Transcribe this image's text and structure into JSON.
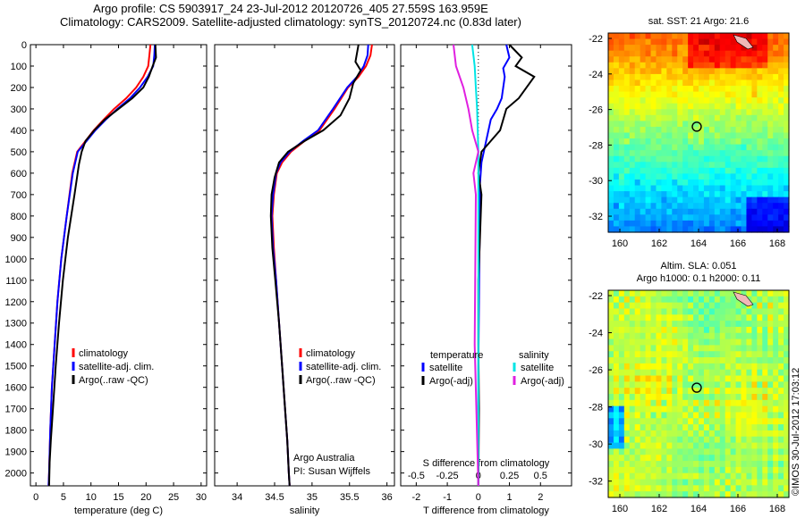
{
  "header": {
    "line1": "Argo profile: CS 5903917_24 23-Jul-2012 20120726_405 27.559S 163.959E",
    "line2": "Climatology: CARS2009. Satellite-adjusted climatology: synTS_20120724.nc (0.83d later)"
  },
  "colors": {
    "climatology": "#ff0000",
    "satellite": "#0000ff",
    "argo": "#000000",
    "sat_sal": "#00e5e5",
    "argo_sal": "#e020e0"
  },
  "depth_axis": {
    "ticks": [
      "0",
      "100",
      "200",
      "300",
      "400",
      "500",
      "600",
      "700",
      "800",
      "900",
      "1000",
      "1100",
      "1200",
      "1300",
      "1400",
      "1500",
      "1600",
      "1700",
      "1800",
      "1900",
      "2000"
    ]
  },
  "chart_data": [
    {
      "type": "line",
      "xlabel": "temperature (deg C)",
      "xlim": [
        -1,
        31
      ],
      "ylim": [
        2060,
        0
      ],
      "xticks": [
        "0",
        "5",
        "10",
        "15",
        "20",
        "25",
        "30"
      ],
      "series": [
        {
          "name": "climatology",
          "x": [
            20.8,
            20.6,
            20.4,
            19.5,
            18.2,
            16.4,
            14.2,
            12.3,
            10.5,
            9.0,
            7.5,
            6.6,
            5.6,
            4.6,
            3.9,
            3.4,
            2.9,
            2.6,
            2.4,
            2.3
          ],
          "y": [
            0,
            50,
            100,
            150,
            200,
            250,
            300,
            350,
            400,
            450,
            500,
            600,
            800,
            1000,
            1200,
            1400,
            1600,
            1800,
            2000,
            2060
          ]
        },
        {
          "name": "satellite-adj. clim.",
          "x": [
            21.6,
            21.5,
            21.3,
            20.3,
            18.9,
            17.1,
            14.8,
            12.7,
            10.8,
            9.2,
            7.6,
            6.7,
            5.6,
            4.6,
            3.9,
            3.4,
            2.9,
            2.6,
            2.4,
            2.3
          ],
          "y": [
            0,
            50,
            100,
            150,
            200,
            250,
            300,
            350,
            400,
            450,
            500,
            600,
            800,
            1000,
            1200,
            1400,
            1600,
            1800,
            2000,
            2060
          ]
        },
        {
          "name": "Argo(..raw -QC)",
          "x": [
            21.7,
            21.8,
            21.2,
            20.5,
            19.5,
            17.5,
            15.0,
            12.5,
            10.6,
            9.0,
            8.3,
            7.8,
            7.0,
            5.8,
            4.9,
            4.2,
            3.6,
            3.1,
            2.7,
            2.5,
            2.4
          ],
          "y": [
            0,
            60,
            100,
            150,
            200,
            250,
            300,
            350,
            400,
            450,
            500,
            560,
            700,
            900,
            1100,
            1300,
            1500,
            1700,
            1850,
            1950,
            2060
          ]
        }
      ],
      "legend": [
        "climatology",
        "satellite-adj. clim.",
        "Argo(..raw -QC)"
      ]
    },
    {
      "type": "line",
      "xlabel": "salinity",
      "xlim": [
        33.7,
        36.1
      ],
      "ylim": [
        2060,
        0
      ],
      "xticks": [
        "34",
        "34.5",
        "35",
        "35.5",
        "36"
      ],
      "series": [
        {
          "name": "climatology",
          "x": [
            35.8,
            35.78,
            35.72,
            35.62,
            35.48,
            35.3,
            35.1,
            34.9,
            34.72,
            34.6,
            34.53,
            34.49,
            34.47,
            34.49,
            34.52,
            34.56,
            34.6,
            34.64,
            34.67,
            34.69,
            34.7
          ],
          "y": [
            0,
            50,
            100,
            150,
            200,
            300,
            400,
            450,
            500,
            550,
            600,
            700,
            800,
            950,
            1100,
            1300,
            1500,
            1700,
            1850,
            2000,
            2060
          ]
        },
        {
          "name": "satellite-adj. clim.",
          "x": [
            35.75,
            35.74,
            35.69,
            35.6,
            35.47,
            35.28,
            35.08,
            34.88,
            34.7,
            34.58,
            34.52,
            34.48,
            34.46,
            34.48,
            34.52,
            34.56,
            34.6,
            34.64,
            34.67,
            34.69,
            34.7
          ],
          "y": [
            0,
            50,
            100,
            150,
            200,
            300,
            400,
            450,
            500,
            550,
            600,
            700,
            800,
            950,
            1100,
            1300,
            1500,
            1700,
            1850,
            2000,
            2060
          ]
        },
        {
          "name": "Argo(..raw -QC)",
          "x": [
            35.62,
            35.58,
            35.65,
            35.55,
            35.5,
            35.38,
            35.15,
            34.9,
            34.68,
            34.56,
            34.5,
            34.46,
            34.45,
            34.47,
            34.51,
            34.56,
            34.6,
            34.64,
            34.67,
            34.69,
            34.7
          ],
          "y": [
            0,
            80,
            120,
            180,
            250,
            330,
            400,
            450,
            500,
            550,
            620,
            700,
            800,
            950,
            1100,
            1300,
            1500,
            1700,
            1850,
            2000,
            2060
          ]
        }
      ],
      "legend": [
        "climatology",
        "satellite-adj. clim.",
        "Argo(..raw -QC)"
      ]
    },
    {
      "type": "line",
      "xlabel": "T difference from climatology",
      "top_xlabel": "S difference from climatology",
      "xlim": [
        -2.5,
        3.0
      ],
      "ylim": [
        2060,
        0
      ],
      "xticks": [
        "-2",
        "-1",
        "0",
        "1",
        "2"
      ],
      "top_xticks": [
        "-0.5",
        "-0.25",
        "0",
        "0.25",
        "0.5"
      ],
      "series": [
        {
          "name": "temperature satellite",
          "x": [
            0.9,
            1.0,
            0.8,
            0.85,
            0.8,
            0.75,
            0.6,
            0.4,
            0.25,
            0.1,
            0.05,
            0.05,
            0.03,
            0.02,
            0.0,
            0.0,
            0.0
          ],
          "y": [
            0,
            60,
            110,
            150,
            200,
            250,
            300,
            350,
            450,
            550,
            650,
            800,
            1000,
            1200,
            1500,
            1800,
            2060
          ]
        },
        {
          "name": "temperature Argo(-adj)",
          "x": [
            1.0,
            1.4,
            1.2,
            1.8,
            1.3,
            0.9,
            0.7,
            0.4,
            0.1,
            0.0,
            0.1,
            0.05,
            0.0,
            0.0,
            0.02,
            0.0
          ],
          "y": [
            0,
            60,
            100,
            150,
            250,
            300,
            400,
            450,
            500,
            600,
            700,
            900,
            1100,
            1400,
            1700,
            2060
          ]
        },
        {
          "name": "salinity satellite",
          "x": [
            -0.05,
            -0.04,
            -0.03,
            -0.02,
            -0.01,
            0.0,
            0.0,
            0.0,
            0.0
          ],
          "y": [
            0,
            50,
            100,
            200,
            300,
            500,
            800,
            1500,
            2060
          ]
        },
        {
          "name": "salinity Argo(-adj)",
          "x": [
            -0.2,
            -0.18,
            -0.12,
            -0.08,
            -0.05,
            0.0,
            -0.04,
            -0.02,
            -0.03,
            0.0
          ],
          "y": [
            0,
            100,
            200,
            300,
            400,
            500,
            600,
            700,
            1400,
            2060
          ]
        }
      ],
      "legend_groups": {
        "temperature": {
          "title": "temperature",
          "items": [
            "satellite",
            "Argo(-adj)"
          ]
        },
        "salinity": {
          "title": "salinity",
          "items": [
            "satellite",
            "Argo(-adj)"
          ]
        }
      }
    },
    {
      "type": "heatmap",
      "title": "sat. SST: 21 Argo: 21.6",
      "xticks": [
        "160",
        "162",
        "164",
        "166",
        "168"
      ],
      "yticks": [
        "-22",
        "-24",
        "-26",
        "-28",
        "-30",
        "-32"
      ]
    },
    {
      "type": "heatmap",
      "title_line1": "Altim. SLA: 0.051",
      "title_line2": "Argo h1000: 0.1 h2000: 0.11",
      "xticks": [
        "160",
        "162",
        "164",
        "166",
        "168"
      ],
      "yticks": [
        "-22",
        "-24",
        "-26",
        "-28",
        "-30",
        "-32"
      ]
    }
  ],
  "annotation": {
    "line1": "Argo Australia",
    "line2": "PI: Susan Wijffels"
  },
  "watermark": "©IMOS 30-Jul-2012 17:03:12"
}
